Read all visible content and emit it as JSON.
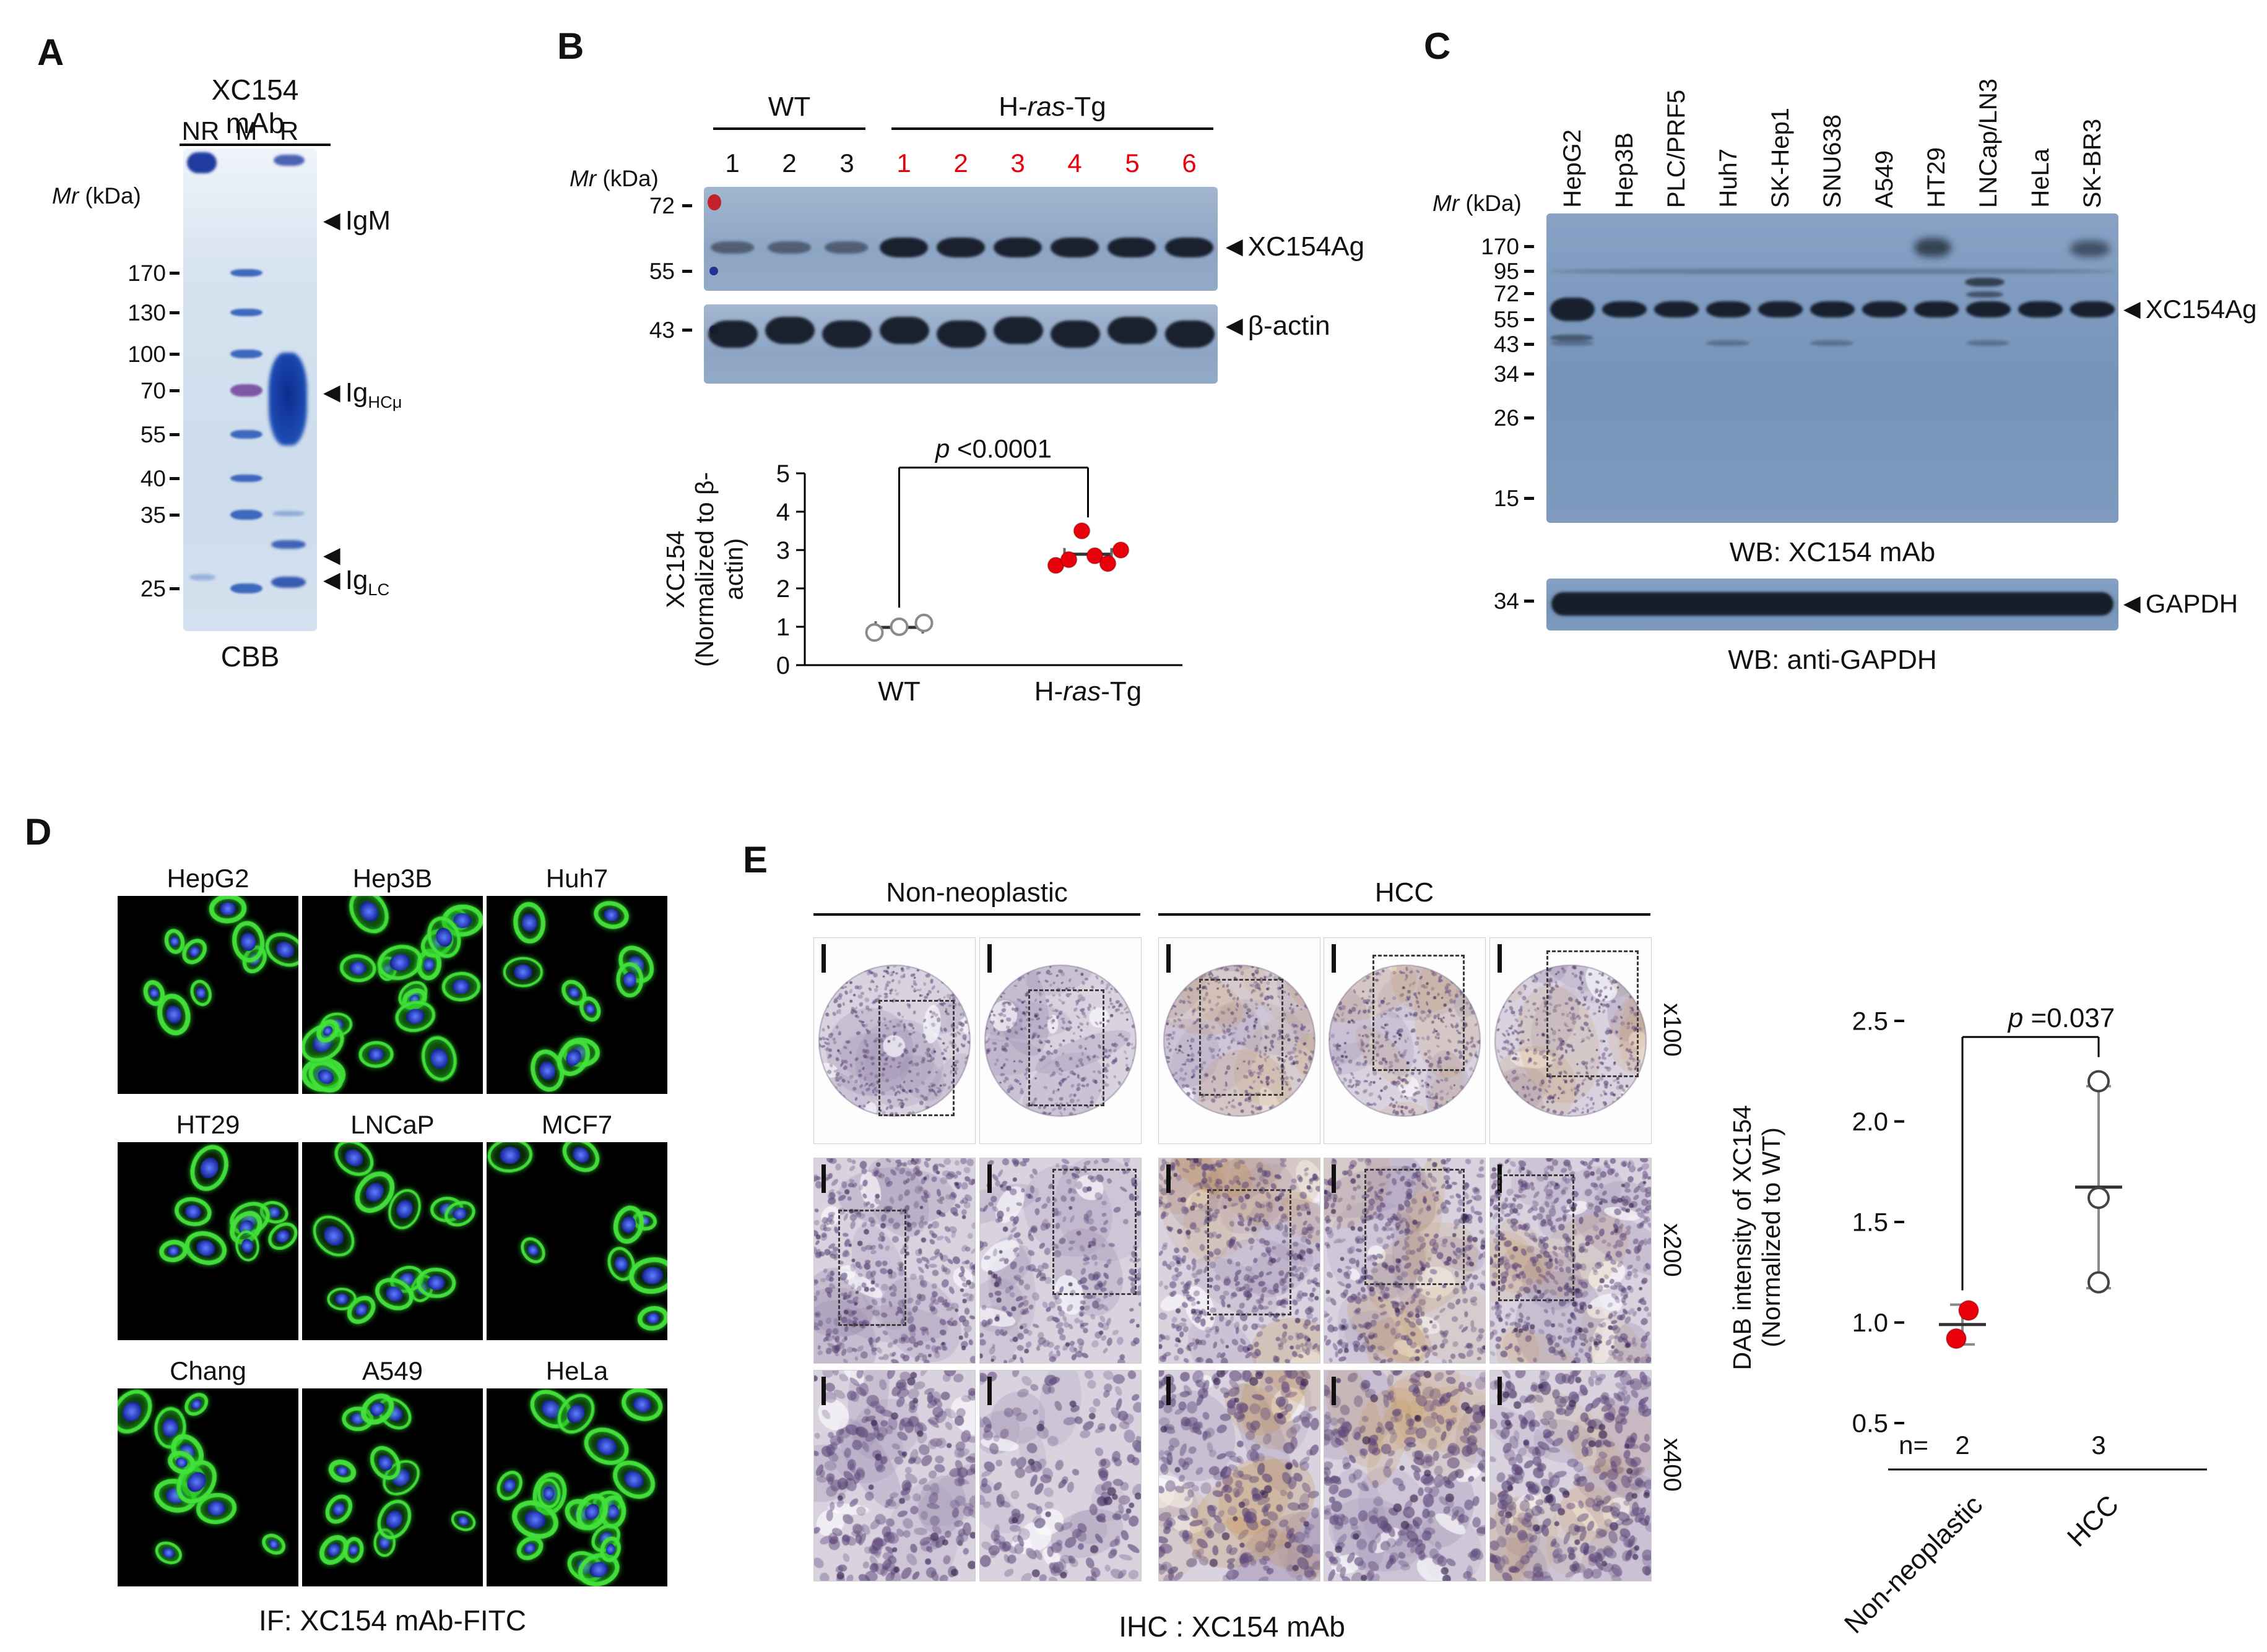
{
  "icons": {
    "arrowhead": "◀"
  },
  "colors": {
    "accent_red": "#e8000b",
    "blot_blue": "#8da5c4",
    "gel_blue": "#dce8f4",
    "fitc_green": "#3ddc3d",
    "dapi_blue": "#3050e0",
    "dab_brown": "#c48c3e",
    "hematoxylin_purple": "#6b5690"
  },
  "panelA": {
    "label": "A",
    "title": "XC154 mAb",
    "lanes": [
      "NR",
      "M",
      "R"
    ],
    "mr_italic": "Mr",
    "mr_rest": " (kDa)",
    "markers": [
      "170",
      "130",
      "100",
      "70",
      "55",
      "40",
      "35",
      "25"
    ],
    "ann_igm": "IgM",
    "ann_ighc_base": "Ig",
    "ann_ighc_sub": "HCμ",
    "ann_iglc_base": "Ig",
    "ann_iglc_sub": "LC",
    "caption": "CBB"
  },
  "panelB": {
    "label": "B",
    "group1": "WT",
    "group2_pre": "H-",
    "group2_it": "ras",
    "group2_post": "-Tg",
    "lane_numbers_wt": [
      "1",
      "2",
      "3"
    ],
    "lane_numbers_tg": [
      "1",
      "2",
      "3",
      "4",
      "5",
      "6"
    ],
    "mr_italic": "Mr",
    "mr_rest": " (kDa)",
    "markers": [
      "72",
      "55",
      "43"
    ],
    "band1": "XC154Ag",
    "band2": "β-actin"
  },
  "panelC": {
    "label": "C",
    "cell_lines": [
      "HepG2",
      "Hep3B",
      "PLC/PRF5",
      "Huh7",
      "SK-Hep1",
      "SNU638",
      "A549",
      "HT29",
      "LNCap/LN3",
      "HeLa",
      "SK-BR3"
    ],
    "mr_italic": "Mr",
    "mr_rest": " (kDa)",
    "markers": [
      "170",
      "95",
      "72",
      "55",
      "43",
      "34",
      "26",
      "15"
    ],
    "band1": "XC154Ag",
    "caption1": "WB: XC154 mAb",
    "gapdh_marker": "34",
    "band2": "GAPDH",
    "caption2": "WB: anti-GAPDH"
  },
  "panelD": {
    "label": "D",
    "rows": [
      [
        "HepG2",
        "Hep3B",
        "Huh7"
      ],
      [
        "HT29",
        "LNCaP",
        "MCF7"
      ],
      [
        "Chang",
        "A549",
        "HeLa"
      ]
    ],
    "caption": "IF: XC154 mAb-FITC"
  },
  "panelE": {
    "label": "E",
    "group1": "Non-neoplastic",
    "group2": "HCC",
    "magnifications": [
      "x100",
      "x200",
      "x400"
    ],
    "caption": "IHC : XC154 mAb"
  },
  "chart_data": [
    {
      "id": "xc154-vs-actin",
      "type": "scatter",
      "panel": "B",
      "p_it": "p",
      "p_rest": " <0.0001",
      "ylabel_line1": "XC154",
      "ylabel_line2": "(Normalized to β-actin)",
      "ylim": [
        0,
        5
      ],
      "yticks": [
        0,
        1,
        2,
        3,
        4,
        5
      ],
      "ytick_labels": [
        "0",
        "1",
        "2",
        "3",
        "4",
        "5"
      ],
      "categories": [
        "WT",
        {
          "pre": "H-",
          "it": "ras",
          "post": "-Tg"
        }
      ],
      "series": [
        {
          "name": "WT",
          "marker": "open",
          "color": "#8a8a8a",
          "values": [
            0.85,
            1.0,
            1.1
          ]
        },
        {
          "name": "H-ras-Tg",
          "marker": "filled",
          "color": "#e8000b",
          "values": [
            2.6,
            2.75,
            3.5,
            2.85,
            2.65,
            3.0
          ]
        }
      ],
      "bracket": {
        "top": 5.15,
        "drop1": 1.5,
        "drop2": 3.85
      },
      "legend": "none",
      "grid": "off"
    },
    {
      "id": "dab-intensity",
      "type": "scatter",
      "panel": "E",
      "p_it": "p",
      "p_rest": " =0.037",
      "ylabel_line1": "DAB intensity of XC154",
      "ylabel_line2": "(Normalized to WT)",
      "ylim": [
        0.5,
        2.5
      ],
      "yticks": [
        0.5,
        1.0,
        1.5,
        2.0,
        2.5
      ],
      "ytick_labels": [
        "0.5",
        "1.0",
        "1.5",
        "2.0",
        "2.5"
      ],
      "categories": [
        "Non-neoplastic",
        "HCC"
      ],
      "n_labels": {
        "prefix": "n=",
        "values": [
          "2",
          "3"
        ]
      },
      "series": [
        {
          "name": "Non-neoplastic",
          "marker": "filled",
          "color": "#e8000b",
          "values": [
            0.92,
            1.06
          ]
        },
        {
          "name": "HCC",
          "marker": "open",
          "color": "#444444",
          "values": [
            1.2,
            1.62,
            2.2
          ]
        }
      ],
      "bracket": {
        "top": 2.42,
        "drop1": 1.16,
        "drop2": 2.32
      },
      "legend": "none",
      "grid": "off"
    }
  ]
}
